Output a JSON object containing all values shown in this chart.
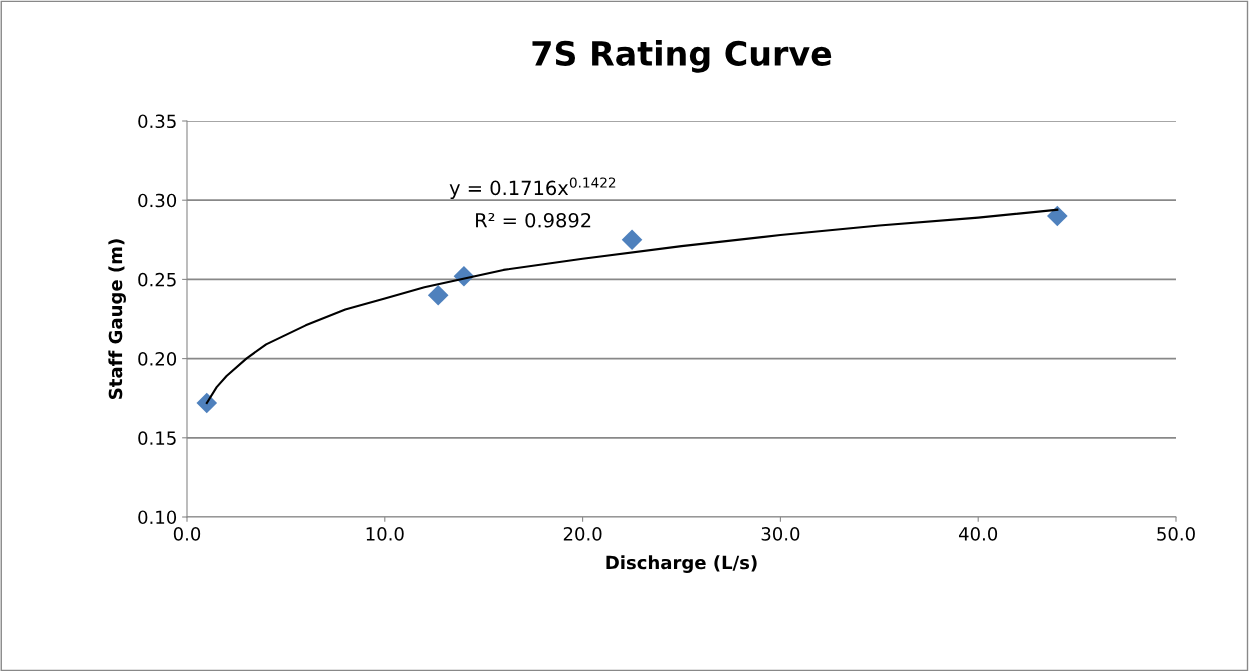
{
  "chart_data": {
    "type": "scatter",
    "title": "7S Rating Curve",
    "xlabel": "Discharge (L/s)",
    "ylabel": "Staff Gauge (m)",
    "annotations": [
      "y = 0.1716x$^{0.1422}$",
      "R² = 0.9892"
    ],
    "series": [
      {
        "color": "#4f81bd",
        "marker": "diamond",
        "x": [
          1.0,
          12.7,
          14.0,
          22.5,
          44.0
        ],
        "values": [
          0.172,
          0.24,
          0.252,
          0.275,
          0.29
        ]
      },
      {
        "type": "line",
        "color": "#000000",
        "marker": "none",
        "line_style": "solid",
        "x": [
          1,
          1.5,
          2,
          3,
          4,
          5,
          6,
          8,
          10,
          12,
          16,
          20,
          25,
          30,
          35,
          40,
          44
        ],
        "values": [
          0.172,
          0.182,
          0.189,
          0.2,
          0.209,
          0.215,
          0.221,
          0.231,
          0.238,
          0.245,
          0.256,
          0.263,
          0.271,
          0.278,
          0.284,
          0.289,
          0.294
        ]
      }
    ],
    "xlim": [
      0,
      50
    ],
    "xticks": [
      {
        "value": 0,
        "label": "0.0"
      },
      {
        "value": 10,
        "label": "10.0"
      },
      {
        "value": 20,
        "label": "20.0"
      },
      {
        "value": 30,
        "label": "30.0"
      },
      {
        "value": 40,
        "label": "40.0"
      },
      {
        "value": 50,
        "label": "50.0"
      }
    ],
    "ylim": [
      0.1,
      0.35
    ],
    "yticks": [
      {
        "value": 0.1,
        "label": "0.10"
      },
      {
        "value": 0.15,
        "label": "0.15"
      },
      {
        "value": 0.2,
        "label": "0.20"
      },
      {
        "value": 0.25,
        "label": "0.25"
      },
      {
        "value": 0.3,
        "label": "0.30"
      },
      {
        "value": 0.35,
        "label": "0.35"
      }
    ],
    "grid": "y",
    "legend": false
  }
}
